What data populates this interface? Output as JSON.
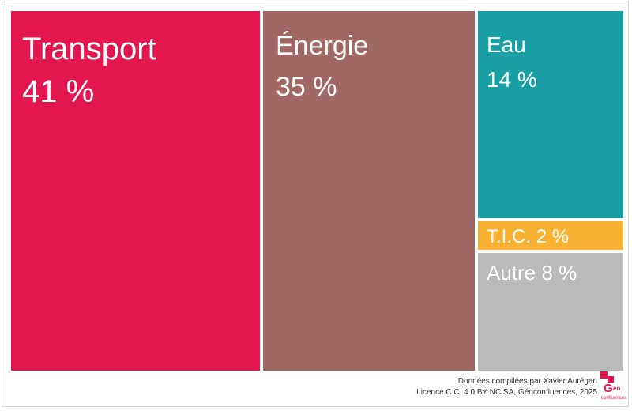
{
  "chart_data": {
    "type": "treemap",
    "unit": "%",
    "items": [
      {
        "label": "Transport",
        "value": 41,
        "display": "41 %",
        "color": "#E31650"
      },
      {
        "label": "Énergie",
        "value": 35,
        "display": "35 %",
        "color": "#A06865"
      },
      {
        "label": "Eau",
        "value": 14,
        "display": "14 %",
        "color": "#199EA3"
      },
      {
        "label": "T.I.C.",
        "value": 2,
        "display": "2 %",
        "color": "#F8B133"
      },
      {
        "label": "Autre",
        "value": 8,
        "display": "8 %",
        "color": "#BABAB9"
      }
    ]
  },
  "credits": {
    "line1": "Données compilées par Xavier Aurégan",
    "line2": "Licence C.C. 4.0 BY NC SA, Géoconfluences, 2025"
  },
  "logo": {
    "name": "geoconfluences-logo",
    "text": "Géo confluences",
    "color": "#E31650"
  }
}
